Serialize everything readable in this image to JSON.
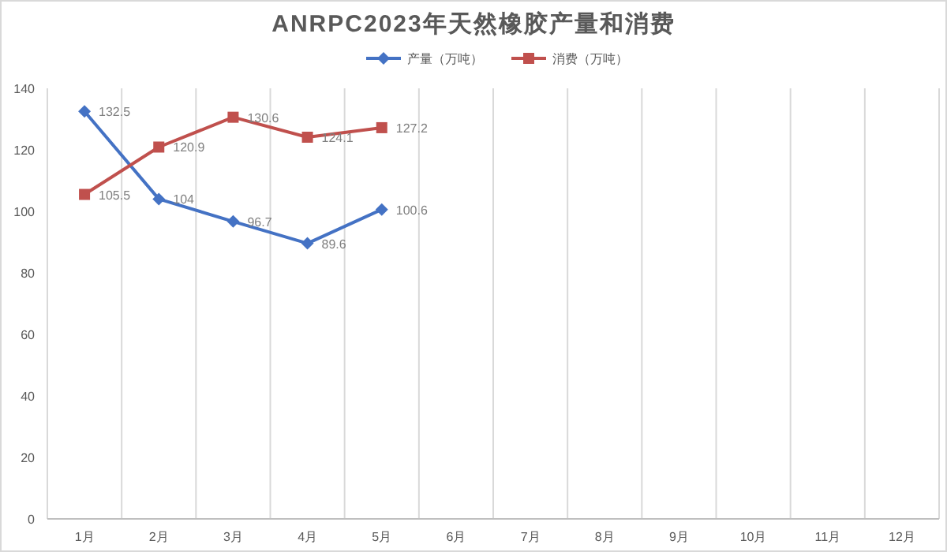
{
  "chart_data": {
    "type": "line",
    "title": "ANRPC2023年天然橡胶产量和消费",
    "categories": [
      "1月",
      "2月",
      "3月",
      "4月",
      "5月",
      "6月",
      "7月",
      "8月",
      "9月",
      "10月",
      "11月",
      "12月"
    ],
    "series": [
      {
        "name": "产量（万吨）",
        "color": "#4472c4",
        "marker": "diamond",
        "values": [
          132.5,
          104,
          96.7,
          89.6,
          100.6,
          null,
          null,
          null,
          null,
          null,
          null,
          null
        ]
      },
      {
        "name": "消费（万吨）",
        "color": "#c0504d",
        "marker": "square",
        "values": [
          105.5,
          120.9,
          130.6,
          124.1,
          127.2,
          null,
          null,
          null,
          null,
          null,
          null,
          null
        ]
      }
    ],
    "ylim": [
      0,
      140
    ],
    "yticks": [
      0,
      20,
      40,
      60,
      80,
      100,
      120,
      140
    ],
    "grid": "x",
    "legend": "top",
    "data_labels": true,
    "line_style": "solid"
  }
}
